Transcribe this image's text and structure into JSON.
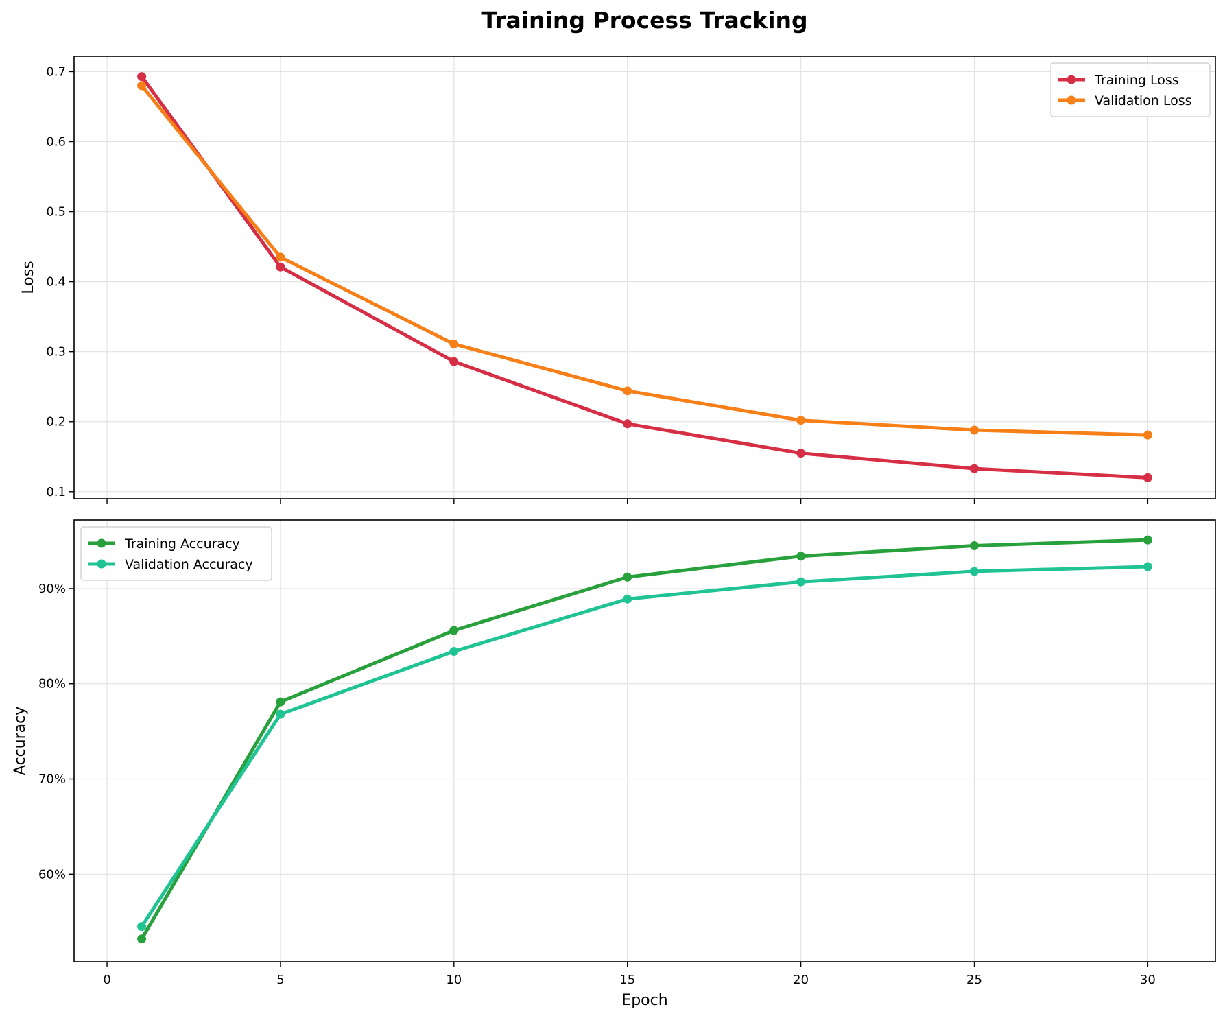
{
  "title": "Training Process Tracking",
  "chart_data": [
    {
      "type": "line",
      "ylabel": "Loss",
      "xlabel": "",
      "xlim": [
        -0.95,
        31.95
      ],
      "ylim": [
        0.09,
        0.722
      ],
      "xticks": [
        0,
        5,
        10,
        15,
        20,
        25,
        30
      ],
      "yticks": [
        0.1,
        0.2,
        0.3,
        0.4,
        0.5,
        0.6,
        0.7
      ],
      "ytick_format": "decimal",
      "grid": true,
      "legend": "upper-right",
      "x": [
        1,
        5,
        10,
        15,
        20,
        25,
        30
      ],
      "series": [
        {
          "name": "Training Loss",
          "color": "#d62f45",
          "values": [
            0.693,
            0.421,
            0.286,
            0.197,
            0.155,
            0.133,
            0.12
          ]
        },
        {
          "name": "Validation Loss",
          "color": "#f77f17",
          "values": [
            0.68,
            0.435,
            0.311,
            0.244,
            0.202,
            0.188,
            0.181
          ]
        }
      ]
    },
    {
      "type": "line",
      "ylabel": "Accuracy",
      "xlabel": "Epoch",
      "xlim": [
        -0.95,
        31.95
      ],
      "ylim": [
        0.508,
        0.972
      ],
      "xticks": [
        0,
        5,
        10,
        15,
        20,
        25,
        30
      ],
      "yticks": [
        0.6,
        0.7,
        0.8,
        0.9
      ],
      "ytick_format": "percent",
      "grid": true,
      "legend": "upper-left",
      "x": [
        1,
        5,
        10,
        15,
        20,
        25,
        30
      ],
      "series": [
        {
          "name": "Training Accuracy",
          "color": "#28a03c",
          "values": [
            0.532,
            0.781,
            0.856,
            0.912,
            0.934,
            0.945,
            0.951
          ]
        },
        {
          "name": "Validation Accuracy",
          "color": "#20c494",
          "values": [
            0.545,
            0.768,
            0.834,
            0.889,
            0.907,
            0.918,
            0.923
          ]
        }
      ]
    }
  ]
}
